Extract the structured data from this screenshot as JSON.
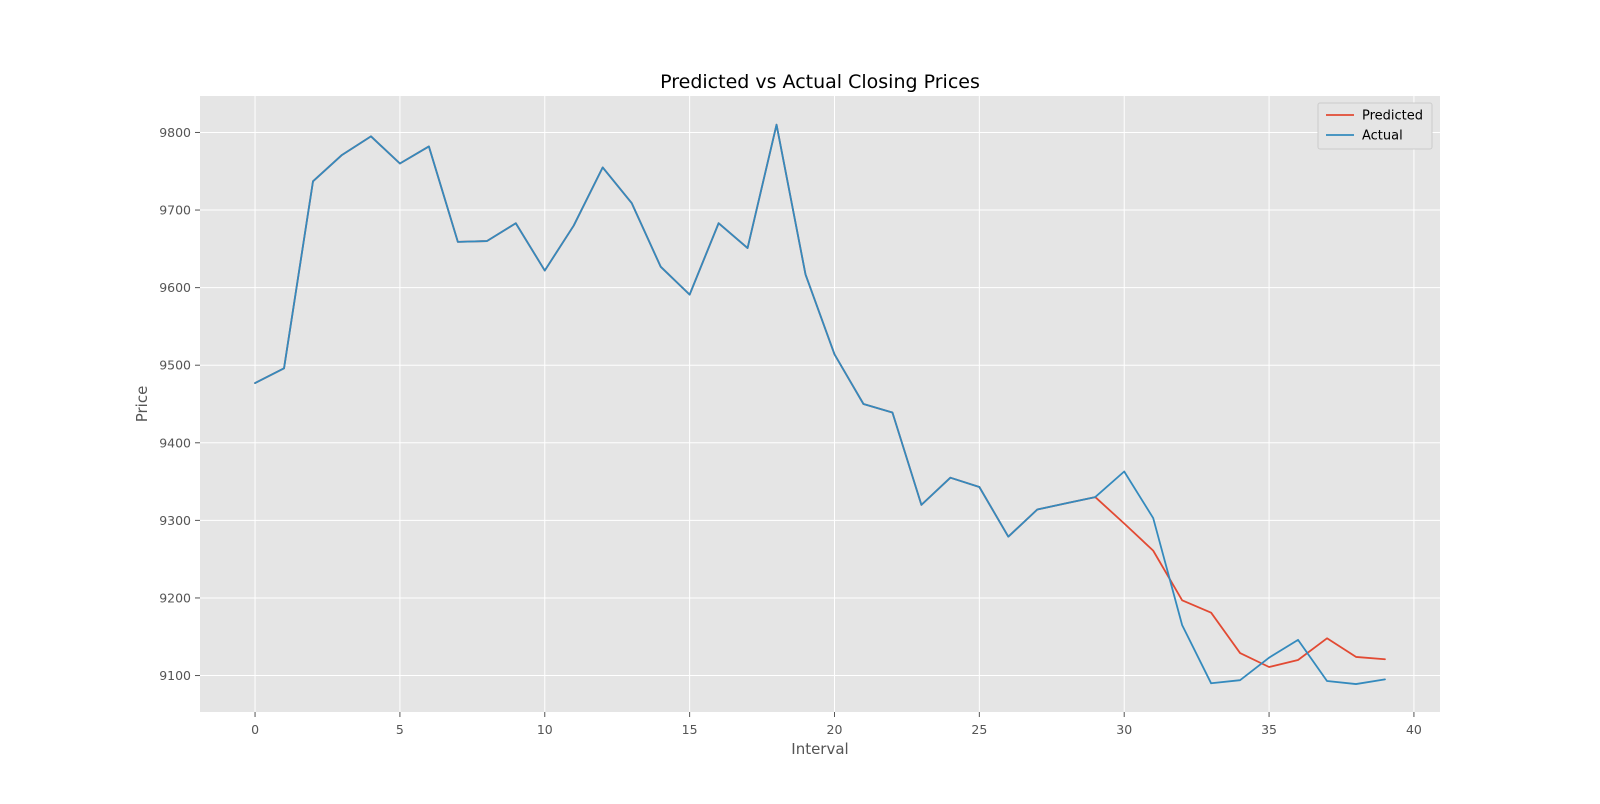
{
  "chart_data": {
    "type": "line",
    "title": "Predicted vs Actual Closing Prices",
    "xlabel": "Interval",
    "ylabel": "Price",
    "xlim": [
      -1.9,
      40.9
    ],
    "ylim": [
      9053,
      9847
    ],
    "x_ticks": [
      0,
      5,
      10,
      15,
      20,
      25,
      30,
      35,
      40
    ],
    "y_ticks": [
      9100,
      9200,
      9300,
      9400,
      9500,
      9600,
      9700,
      9800
    ],
    "grid": true,
    "legend_position": "top-right",
    "x": [
      0,
      1,
      2,
      3,
      4,
      5,
      6,
      7,
      8,
      9,
      10,
      11,
      12,
      13,
      14,
      15,
      16,
      17,
      18,
      19,
      20,
      21,
      22,
      23,
      24,
      25,
      26,
      27,
      28,
      29,
      30,
      31,
      32,
      33,
      34,
      35,
      36,
      37,
      38,
      39
    ],
    "series": [
      {
        "name": "Predicted",
        "color": "#E24A33",
        "values": [
          9477,
          9496,
          9737,
          9771,
          9795,
          9760,
          9782,
          9659,
          9660,
          9683,
          9622,
          9680,
          9755,
          9709,
          9627,
          9591,
          9683,
          9651,
          9810,
          9617,
          9514,
          9450,
          9439,
          9320,
          9355,
          9343,
          9279,
          9314,
          9322,
          9330,
          9296,
          9261,
          9197,
          9181,
          9129,
          9111,
          9120,
          9148,
          9124,
          9121
        ]
      },
      {
        "name": "Actual",
        "color": "#348ABD",
        "values": [
          9477,
          9496,
          9737,
          9771,
          9795,
          9760,
          9782,
          9659,
          9660,
          9683,
          9622,
          9680,
          9755,
          9709,
          9627,
          9591,
          9683,
          9651,
          9810,
          9617,
          9514,
          9450,
          9439,
          9320,
          9355,
          9343,
          9279,
          9314,
          9322,
          9330,
          9363,
          9303,
          9165,
          9090,
          9094,
          9123,
          9146,
          9093,
          9089,
          9095
        ]
      }
    ]
  }
}
